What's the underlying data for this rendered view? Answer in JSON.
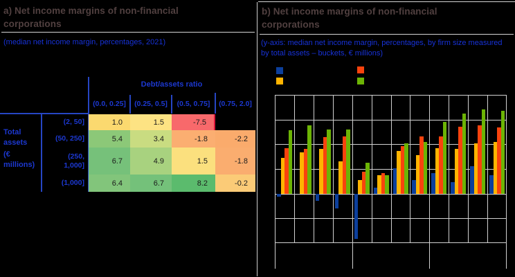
{
  "panel_a": {
    "title": "a) Net income margins of non-financial corporations",
    "subtitle": "(median net income margin, percentages, 2021)",
    "table": {
      "column_group_label": "Debt/assets ratio",
      "row_group_label_1": "Total assets",
      "row_group_label_2": "(€ millions)",
      "columns": [
        "(0.0, 0.25]",
        "(0.25, 0.5]",
        "(0.5, 0.75]",
        "(0.75, 2.0]"
      ],
      "rows": [
        {
          "label": "(2, 50]",
          "cells": [
            {
              "value": "1.0",
              "bg": "#FBD96F"
            },
            {
              "value": "1.5",
              "bg": "#FDE383"
            },
            {
              "value": "-7.5",
              "bg": "#F8696B",
              "accent_border": true
            },
            {
              "value": "",
              "bg": null
            }
          ]
        },
        {
          "label": "(50, 250]",
          "cells": [
            {
              "value": "5.4",
              "bg": "#8CC878"
            },
            {
              "value": "3.4",
              "bg": "#C9DC81"
            },
            {
              "value": "-1.8",
              "bg": "#FBAE71"
            },
            {
              "value": "-2.2",
              "bg": "#FAAB6C"
            }
          ]
        },
        {
          "label": "(250,\n1,000]",
          "cells": [
            {
              "value": "6.7",
              "bg": "#76C17A"
            },
            {
              "value": "4.9",
              "bg": "#A8D27F"
            },
            {
              "value": "1.5",
              "bg": "#FBE07E"
            },
            {
              "value": "-1.8",
              "bg": "#FAAD6F"
            }
          ]
        },
        {
          "label": "(1,000]",
          "cells": [
            {
              "value": "6.4",
              "bg": "#82C57B"
            },
            {
              "value": "6.7",
              "bg": "#74C17A"
            },
            {
              "value": "8.2",
              "bg": "#5BBB6D"
            },
            {
              "value": "-0.2",
              "bg": "#FBCB77"
            }
          ]
        }
      ],
      "accent_border_color": "#E0173C"
    }
  },
  "panel_b": {
    "title": "b) Net income margins of non-financial corporations",
    "subtitle": "(y-axis: median net income margin, percentages, by firm size measured by total assets – buckets, € millions)",
    "legend": [
      {
        "name": "legend-swatch-blue",
        "label": "",
        "color": "#0C3F9C"
      },
      {
        "name": "legend-swatch-amber",
        "label": "",
        "color": "#FFB400"
      },
      {
        "name": "legend-swatch-orange",
        "label": "",
        "color": "#F9430D"
      },
      {
        "name": "legend-swatch-green",
        "label": "",
        "color": "#6CB405"
      }
    ]
  },
  "chart_data": {
    "type": "bar",
    "title": "b) Net income margins of non-financial corporations",
    "xlabel": "",
    "ylabel": "median net income margin, percentages",
    "ylim": [
      -5,
      10
    ],
    "ytick_interval": 2.5,
    "grid": true,
    "axis_labels_visible": false,
    "legend_position": "top-left",
    "categories": [
      "",
      "",
      "",
      "",
      "",
      "",
      "",
      "",
      "",
      "",
      "",
      ""
    ],
    "category_group_sizes": [
      4,
      4,
      4
    ],
    "series": [
      {
        "name": "size-bucket-1",
        "color": "#0C3F9C",
        "values": [
          -0.3,
          0,
          -0.7,
          -1.5,
          -4.6,
          0.6,
          2.6,
          1.4,
          2.1,
          1.2,
          2.8,
          1.9
        ]
      },
      {
        "name": "size-bucket-2",
        "color": "#FFB400",
        "values": [
          3.6,
          4.2,
          4.5,
          3.3,
          1.4,
          1.9,
          4.3,
          3.9,
          4.6,
          4.5,
          5.1,
          5.2
        ]
      },
      {
        "name": "size-bucket-3",
        "color": "#F9430D",
        "values": [
          4.6,
          4.5,
          5.7,
          5.8,
          2.2,
          2.1,
          4.8,
          5.8,
          5.8,
          6.8,
          6.9,
          6.7
        ]
      },
      {
        "name": "size-bucket-4",
        "color": "#6CB405",
        "values": [
          6.4,
          6.9,
          6.5,
          6.5,
          3.1,
          1.9,
          5.1,
          5.2,
          7.3,
          8.1,
          8.5,
          8.4
        ]
      }
    ]
  }
}
